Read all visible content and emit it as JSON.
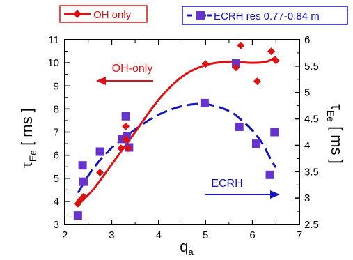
{
  "chart_data": {
    "type": "scatter",
    "xlabel": "q",
    "xlabel_sub": "a",
    "ylabel_left": "τ",
    "ylabel_left_sub": "Ee",
    "ylabel_left_unit": " [ ms ]",
    "ylabel_right": "τ",
    "ylabel_right_sub": "Ee",
    "ylabel_right_unit": " [ ms ]",
    "xlim": [
      2,
      7
    ],
    "ylim_left": [
      3,
      11
    ],
    "ylim_right": [
      2.5,
      6
    ],
    "xticks": [
      "2",
      "3",
      "4",
      "5",
      "6",
      "7"
    ],
    "yticks_left": [
      "3",
      "4",
      "5",
      "6",
      "7",
      "8",
      "9",
      "10",
      "11"
    ],
    "yticks_right": [
      "2.5",
      "3",
      "3.5",
      "4",
      "4.5",
      "5",
      "5.5",
      "6"
    ],
    "grid": false,
    "legend_position": "top",
    "series": [
      {
        "name": "OH only",
        "axis": "left",
        "marker": "diamond",
        "color": "#dd1111",
        "points": [
          [
            2.28,
            3.9
          ],
          [
            2.33,
            4.05
          ],
          [
            2.4,
            4.2
          ],
          [
            2.75,
            5.25
          ],
          [
            3.2,
            6.3
          ],
          [
            3.3,
            7.25
          ],
          [
            3.3,
            6.7
          ],
          [
            3.35,
            6.3
          ],
          [
            5.0,
            9.95
          ],
          [
            5.65,
            9.8
          ],
          [
            5.75,
            10.75
          ],
          [
            6.1,
            9.2
          ],
          [
            6.4,
            10.5
          ],
          [
            6.5,
            10.1
          ]
        ],
        "fit": [
          [
            2.28,
            3.85
          ],
          [
            2.6,
            4.5
          ],
          [
            3.0,
            5.6
          ],
          [
            3.5,
            7.0
          ],
          [
            4.0,
            8.4
          ],
          [
            4.5,
            9.4
          ],
          [
            5.0,
            9.9
          ],
          [
            5.5,
            10.05
          ],
          [
            6.0,
            10.0
          ],
          [
            6.3,
            10.05
          ],
          [
            6.5,
            10.25
          ]
        ]
      },
      {
        "name": "ECRH res 0.77-0.84 m",
        "axis": "right",
        "marker": "square",
        "color": "#6633cc",
        "line_color": "#1515bb",
        "points": [
          [
            2.28,
            2.67
          ],
          [
            2.38,
            3.62
          ],
          [
            2.4,
            3.31
          ],
          [
            2.75,
            3.88
          ],
          [
            3.22,
            4.12
          ],
          [
            3.3,
            4.55
          ],
          [
            3.32,
            4.17
          ],
          [
            3.37,
            3.96
          ],
          [
            4.98,
            4.8
          ],
          [
            5.65,
            5.55
          ],
          [
            5.72,
            4.35
          ],
          [
            6.08,
            4.03
          ],
          [
            6.37,
            3.44
          ],
          [
            6.47,
            4.25
          ]
        ],
        "fit": [
          [
            2.28,
            3.1
          ],
          [
            2.6,
            3.55
          ],
          [
            3.0,
            3.95
          ],
          [
            3.5,
            4.3
          ],
          [
            4.0,
            4.58
          ],
          [
            4.5,
            4.74
          ],
          [
            5.0,
            4.78
          ],
          [
            5.5,
            4.65
          ],
          [
            5.8,
            4.45
          ],
          [
            6.0,
            4.28
          ],
          [
            6.2,
            4.05
          ],
          [
            6.4,
            3.72
          ],
          [
            6.5,
            3.58
          ]
        ]
      }
    ],
    "annotations": [
      {
        "text": "OH-only",
        "color": "#dd1111"
      },
      {
        "text": "ECRH",
        "color": "#1515bb"
      }
    ]
  }
}
